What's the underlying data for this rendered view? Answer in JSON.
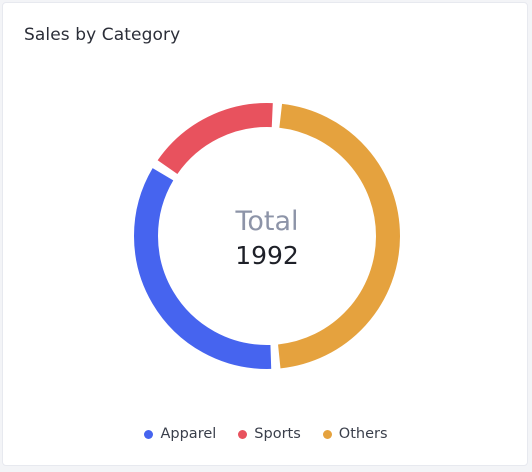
{
  "card": {
    "title": "Sales by Category"
  },
  "chart_data": {
    "type": "pie",
    "title": "Sales by Category",
    "center_label": "Total",
    "center_value": "1992",
    "total": 1992,
    "categories": [
      "Apparel",
      "Sports",
      "Others"
    ],
    "values": [
      700,
      342,
      950
    ],
    "colors": [
      "#4664ef",
      "#e8525e",
      "#e5a23e"
    ],
    "legend_position": "bottom",
    "donut": true
  }
}
